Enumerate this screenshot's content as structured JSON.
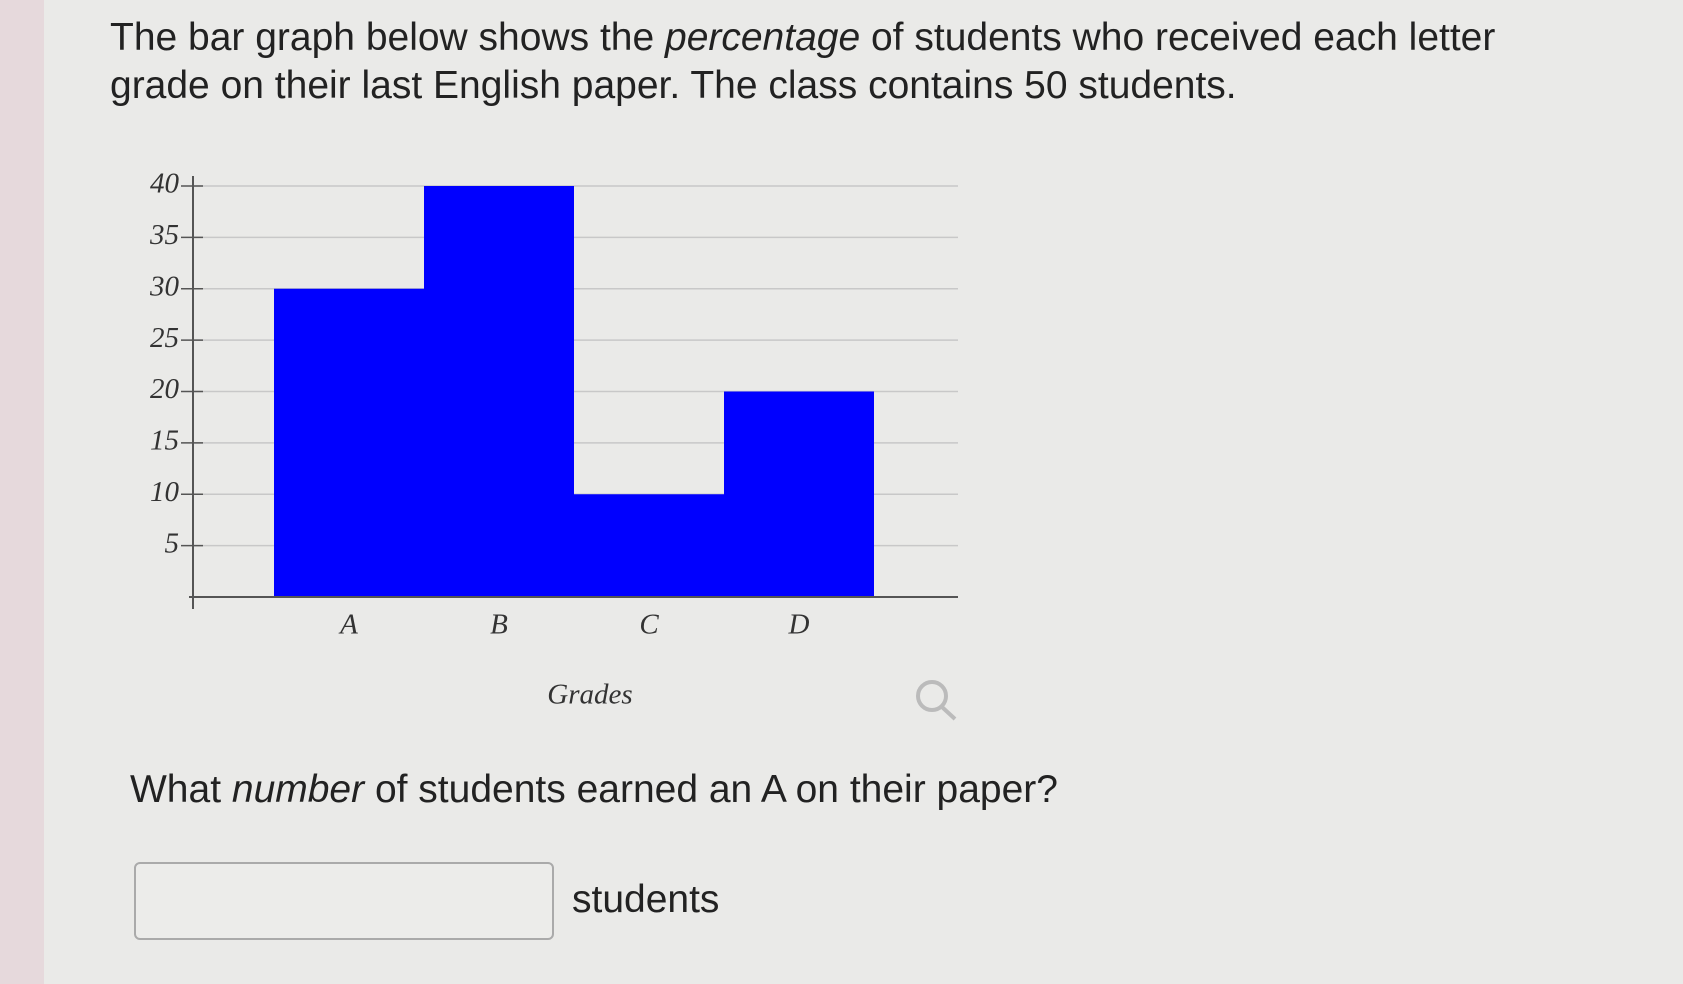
{
  "prompt": {
    "before": "The bar graph below shows the ",
    "emphasis": "percentage",
    "after": " of students who received each letter grade on their last English paper. The class contains 50 students."
  },
  "chart_data": {
    "type": "bar",
    "x_label": "Grades",
    "categories": [
      "A",
      "B",
      "C",
      "D"
    ],
    "values": [
      30,
      40,
      10,
      20
    ],
    "color": "#0000ff",
    "ylim": [
      0,
      40
    ],
    "yticks": [
      5,
      10,
      15,
      20,
      25,
      30,
      35,
      40
    ],
    "grid": true
  },
  "question": {
    "before": "What ",
    "emphasis": "number",
    "after": " of students earned an A on their paper?"
  },
  "answer_unit": "students"
}
